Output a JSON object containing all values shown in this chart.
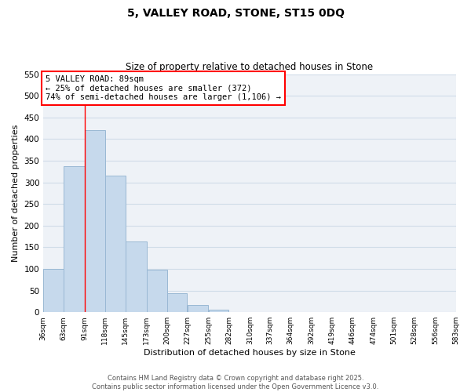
{
  "title": "5, VALLEY ROAD, STONE, ST15 0DQ",
  "subtitle": "Size of property relative to detached houses in Stone",
  "xlabel": "Distribution of detached houses by size in Stone",
  "ylabel": "Number of detached properties",
  "bar_color": "#c6d9ec",
  "bar_edge_color": "#9ab8d4",
  "grid_color": "#d0dce8",
  "bins": [
    36,
    63,
    91,
    118,
    145,
    173,
    200,
    227,
    255,
    282,
    310,
    337,
    364,
    392,
    419,
    446,
    474,
    501,
    528,
    556,
    583
  ],
  "bin_labels": [
    "36sqm",
    "63sqm",
    "91sqm",
    "118sqm",
    "145sqm",
    "173sqm",
    "200sqm",
    "227sqm",
    "255sqm",
    "282sqm",
    "310sqm",
    "337sqm",
    "364sqm",
    "392sqm",
    "419sqm",
    "446sqm",
    "474sqm",
    "501sqm",
    "528sqm",
    "556sqm",
    "583sqm"
  ],
  "values": [
    100,
    338,
    420,
    315,
    163,
    98,
    43,
    17,
    5,
    0,
    0,
    0,
    0,
    0,
    0,
    0,
    0,
    0,
    0,
    0
  ],
  "ylim": [
    0,
    550
  ],
  "yticks": [
    0,
    50,
    100,
    150,
    200,
    250,
    300,
    350,
    400,
    450,
    500,
    550
  ],
  "property_label": "5 VALLEY ROAD: 89sqm",
  "annotation_line1": "← 25% of detached houses are smaller (372)",
  "annotation_line2": "74% of semi-detached houses are larger (1,106) →",
  "vline_x": 91,
  "footer_line1": "Contains HM Land Registry data © Crown copyright and database right 2025.",
  "footer_line2": "Contains public sector information licensed under the Open Government Licence v3.0.",
  "background_color": "#eef2f7"
}
